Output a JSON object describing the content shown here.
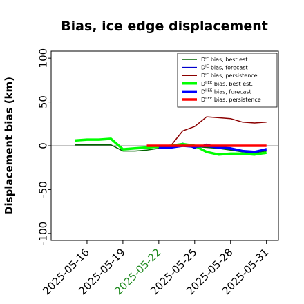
{
  "chart_data": {
    "type": "line",
    "title": "Bias, ice edge displacement",
    "ylabel": "Displacement bias (km)",
    "xlabel": "",
    "ylim": [
      -108,
      108
    ],
    "yticks": [
      100,
      50,
      0,
      -50,
      -100
    ],
    "xticks": [
      {
        "date": "2025-05-16",
        "label": "2025-05-16",
        "color": "#000000"
      },
      {
        "date": "2025-05-19",
        "label": "2025-05-19",
        "color": "#000000"
      },
      {
        "date": "2025-05-22",
        "label": "2025-05-22",
        "color": "#228b22"
      },
      {
        "date": "2025-05-25",
        "label": "2025-05-25",
        "color": "#000000"
      },
      {
        "date": "2025-05-28",
        "label": "2025-05-28",
        "color": "#000000"
      },
      {
        "date": "2025-05-31",
        "label": "2025-05-31",
        "color": "#000000"
      }
    ],
    "xlim": [
      "2025-05-13",
      "2025-06-01"
    ],
    "zero_line": true,
    "legend_placement": "top-right",
    "series": [
      {
        "name": "D bias, best est.",
        "label_sup": "IE",
        "label_rest": " bias, best est.",
        "color": "#006400",
        "width": 1.5,
        "points": [
          [
            "2025-05-15",
            1
          ],
          [
            "2025-05-16",
            1
          ],
          [
            "2025-05-17",
            1
          ],
          [
            "2025-05-18",
            1
          ],
          [
            "2025-05-19",
            -6
          ],
          [
            "2025-05-20",
            -6
          ],
          [
            "2025-05-21",
            -5
          ],
          [
            "2025-05-22",
            -3
          ],
          [
            "2025-05-23",
            -2
          ],
          [
            "2025-05-24",
            0
          ],
          [
            "2025-05-25",
            -1
          ],
          [
            "2025-05-26",
            -2
          ],
          [
            "2025-05-27",
            -3
          ],
          [
            "2025-05-28",
            -5
          ],
          [
            "2025-05-29",
            -7
          ],
          [
            "2025-05-30",
            -8
          ],
          [
            "2025-05-31",
            -6
          ]
        ]
      },
      {
        "name": "D bias, forecast",
        "label_sup": "IE",
        "label_rest": " bias, forecast",
        "color": "#0000cd",
        "width": 1.5,
        "points": [
          [
            "2025-05-22",
            -1
          ],
          [
            "2025-05-23",
            -2
          ],
          [
            "2025-05-24",
            3
          ],
          [
            "2025-05-25",
            -3
          ],
          [
            "2025-05-26",
            2
          ],
          [
            "2025-05-27",
            -2
          ],
          [
            "2025-05-28",
            -4
          ],
          [
            "2025-05-29",
            -6
          ],
          [
            "2025-05-30",
            -7
          ],
          [
            "2025-05-31",
            -3
          ]
        ]
      },
      {
        "name": "D bias, persistence",
        "label_sup": "IE",
        "label_rest": " bias, persistence",
        "color": "#8b0000",
        "width": 1.5,
        "points": [
          [
            "2025-05-21",
            0
          ],
          [
            "2025-05-22",
            0
          ],
          [
            "2025-05-23",
            0
          ],
          [
            "2025-05-24",
            17
          ],
          [
            "2025-05-25",
            22
          ],
          [
            "2025-05-26",
            33
          ],
          [
            "2025-05-27",
            32
          ],
          [
            "2025-05-28",
            31
          ],
          [
            "2025-05-29",
            27
          ],
          [
            "2025-05-30",
            26
          ],
          [
            "2025-05-31",
            27
          ]
        ]
      },
      {
        "name": "D bias, best est.",
        "label_sup": "IIEE",
        "label_rest": " bias, best est.",
        "color": "#00ff00",
        "width": 3.5,
        "points": [
          [
            "2025-05-15",
            6
          ],
          [
            "2025-05-16",
            7
          ],
          [
            "2025-05-17",
            7
          ],
          [
            "2025-05-18",
            8
          ],
          [
            "2025-05-19",
            -4
          ],
          [
            "2025-05-20",
            -3
          ],
          [
            "2025-05-21",
            -2
          ],
          [
            "2025-05-22",
            -1
          ],
          [
            "2025-05-23",
            0
          ],
          [
            "2025-05-24",
            2
          ],
          [
            "2025-05-25",
            0
          ],
          [
            "2025-05-26",
            -7
          ],
          [
            "2025-05-27",
            -10
          ],
          [
            "2025-05-28",
            -9
          ],
          [
            "2025-05-29",
            -9
          ],
          [
            "2025-05-30",
            -10
          ],
          [
            "2025-05-31",
            -8
          ]
        ]
      },
      {
        "name": "D bias, forecast",
        "label_sup": "IIEE",
        "label_rest": " bias, forecast",
        "color": "#0000ff",
        "width": 3.5,
        "points": [
          [
            "2025-05-22",
            -2
          ],
          [
            "2025-05-23",
            -2
          ],
          [
            "2025-05-24",
            0
          ],
          [
            "2025-05-25",
            -1
          ],
          [
            "2025-05-26",
            0
          ],
          [
            "2025-05-27",
            -2
          ],
          [
            "2025-05-28",
            -3
          ],
          [
            "2025-05-29",
            -6
          ],
          [
            "2025-05-30",
            -7
          ],
          [
            "2025-05-31",
            -4
          ]
        ]
      },
      {
        "name": "D bias, persistence",
        "label_sup": "IIEE",
        "label_rest": " bias, persistence",
        "color": "#ff0000",
        "width": 3.5,
        "points": [
          [
            "2025-05-21",
            0
          ],
          [
            "2025-05-22",
            0
          ],
          [
            "2025-05-23",
            0
          ],
          [
            "2025-05-24",
            0
          ],
          [
            "2025-05-25",
            0
          ],
          [
            "2025-05-26",
            0
          ],
          [
            "2025-05-27",
            0
          ],
          [
            "2025-05-28",
            0
          ],
          [
            "2025-05-29",
            0
          ],
          [
            "2025-05-30",
            0
          ],
          [
            "2025-05-31",
            0
          ]
        ]
      }
    ]
  }
}
